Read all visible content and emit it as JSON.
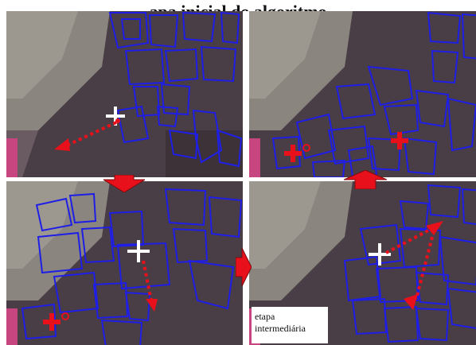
{
  "figure": {
    "title": "...apa inicial do algoritmo...",
    "caption_line1": "etapa",
    "caption_line2": "intermediária"
  },
  "colors": {
    "outline": "#1e1ee6",
    "track": "#e8111b",
    "cross": "#ffffff"
  },
  "icons": [
    "cross-marker-icon",
    "arrow-down-icon",
    "arrow-up-icon",
    "arrow-right-icon"
  ]
}
